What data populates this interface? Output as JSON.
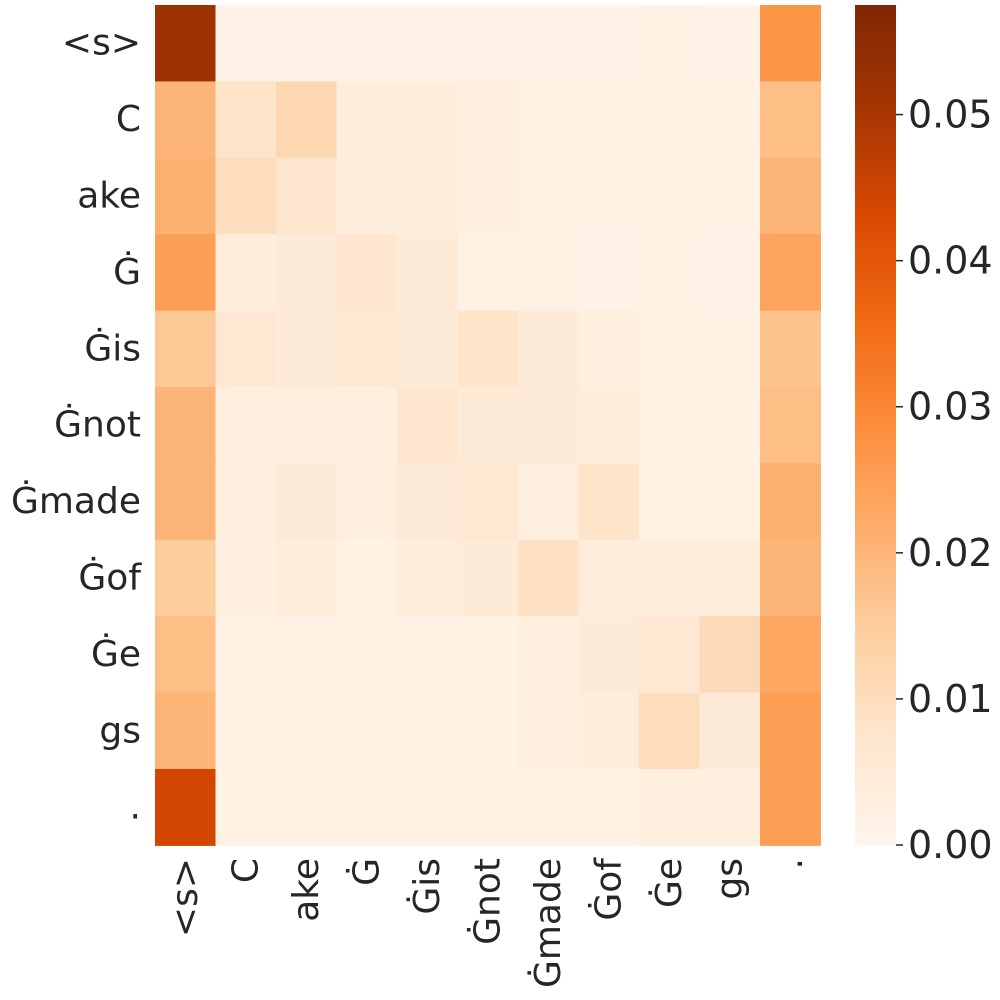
{
  "chart_data": {
    "type": "heatmap",
    "title": "",
    "xlabel": "",
    "ylabel": "",
    "x_labels": [
      "<s>",
      "C",
      "ake",
      "Ġ",
      "Ġis",
      "Ġnot",
      "Ġmade",
      "Ġof",
      "Ġe",
      "gs",
      "."
    ],
    "y_labels": [
      "<s>",
      "C",
      "ake",
      "Ġ",
      "Ġis",
      "Ġnot",
      "Ġmade",
      "Ġof",
      "Ġe",
      "gs",
      "."
    ],
    "values": [
      [
        0.052,
        0.001,
        0.001,
        0.001,
        0.001,
        0.001,
        0.001,
        0.001,
        0.002,
        0.001,
        0.027
      ],
      [
        0.02,
        0.008,
        0.012,
        0.004,
        0.004,
        0.003,
        0.002,
        0.002,
        0.002,
        0.002,
        0.018
      ],
      [
        0.021,
        0.01,
        0.007,
        0.004,
        0.004,
        0.003,
        0.002,
        0.002,
        0.002,
        0.002,
        0.02
      ],
      [
        0.025,
        0.004,
        0.005,
        0.007,
        0.005,
        0.002,
        0.002,
        0.001,
        0.002,
        0.001,
        0.024
      ],
      [
        0.016,
        0.006,
        0.005,
        0.006,
        0.005,
        0.008,
        0.005,
        0.003,
        0.002,
        0.002,
        0.017
      ],
      [
        0.02,
        0.003,
        0.003,
        0.003,
        0.007,
        0.005,
        0.005,
        0.004,
        0.002,
        0.002,
        0.018
      ],
      [
        0.02,
        0.003,
        0.005,
        0.003,
        0.005,
        0.006,
        0.003,
        0.008,
        0.002,
        0.002,
        0.021
      ],
      [
        0.015,
        0.003,
        0.004,
        0.002,
        0.004,
        0.005,
        0.009,
        0.004,
        0.004,
        0.004,
        0.02
      ],
      [
        0.018,
        0.002,
        0.002,
        0.002,
        0.002,
        0.002,
        0.003,
        0.005,
        0.006,
        0.011,
        0.023
      ],
      [
        0.02,
        0.002,
        0.002,
        0.002,
        0.002,
        0.002,
        0.003,
        0.004,
        0.01,
        0.005,
        0.025
      ],
      [
        0.044,
        0.002,
        0.002,
        0.002,
        0.002,
        0.002,
        0.002,
        0.002,
        0.003,
        0.003,
        0.025
      ]
    ],
    "colorbar": {
      "vmin": 0.0,
      "vmax": 0.0575,
      "ticks": [
        0.0,
        0.01,
        0.02,
        0.03,
        0.04,
        0.05
      ],
      "tick_labels": [
        "0.00",
        "0.01",
        "0.02",
        "0.03",
        "0.04",
        "0.05"
      ],
      "colormap": "Oranges",
      "stops": [
        "#fff5eb",
        "#fee6ce",
        "#fdd0a2",
        "#fdae6b",
        "#fd8d3c",
        "#f16913",
        "#d94801",
        "#a63603",
        "#7f2704"
      ]
    },
    "grid": false,
    "legend": "none"
  }
}
